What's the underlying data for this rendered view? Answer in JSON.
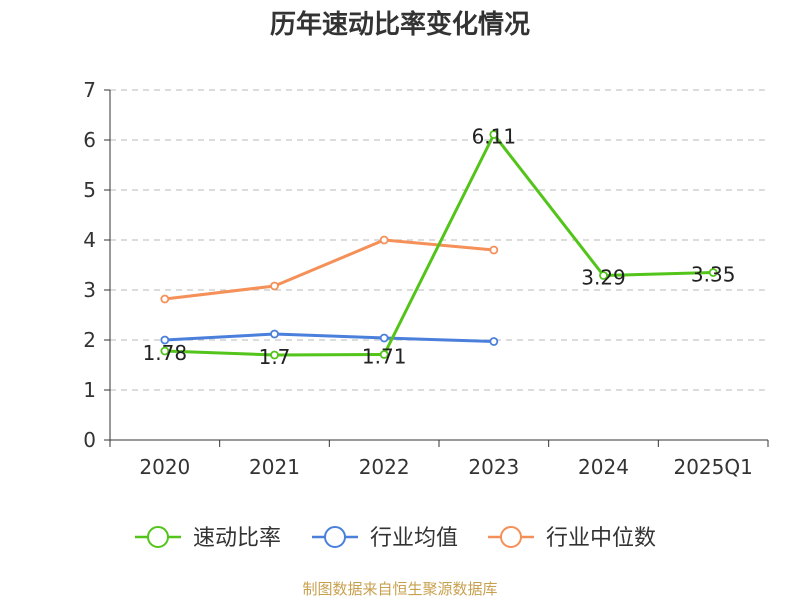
{
  "chart_data": {
    "type": "line",
    "title": "历年速动比率变化情况",
    "categories": [
      "2020",
      "2021",
      "2022",
      "2023",
      "2024",
      "2025Q1"
    ],
    "ylim": [
      0,
      7
    ],
    "yticks": [
      "0",
      "1",
      "2",
      "3",
      "4",
      "5",
      "6",
      "7"
    ],
    "grid": true,
    "legend_position": "bottom",
    "series": [
      {
        "name": "速动比率",
        "color": "#52c41a",
        "values": [
          1.78,
          1.7,
          1.71,
          6.11,
          3.29,
          3.35
        ],
        "labels": [
          "1.78",
          "1.7",
          "1.71",
          "6.11",
          "3.29",
          "3.35"
        ]
      },
      {
        "name": "行业均值",
        "color": "#4a7fdc",
        "values": [
          2.0,
          2.12,
          2.04,
          1.97,
          null,
          null
        ]
      },
      {
        "name": "行业中位数",
        "color": "#f59058",
        "values": [
          2.82,
          3.08,
          4.0,
          3.8,
          null,
          null
        ]
      }
    ]
  },
  "source": "制图数据来自恒生聚源数据库"
}
